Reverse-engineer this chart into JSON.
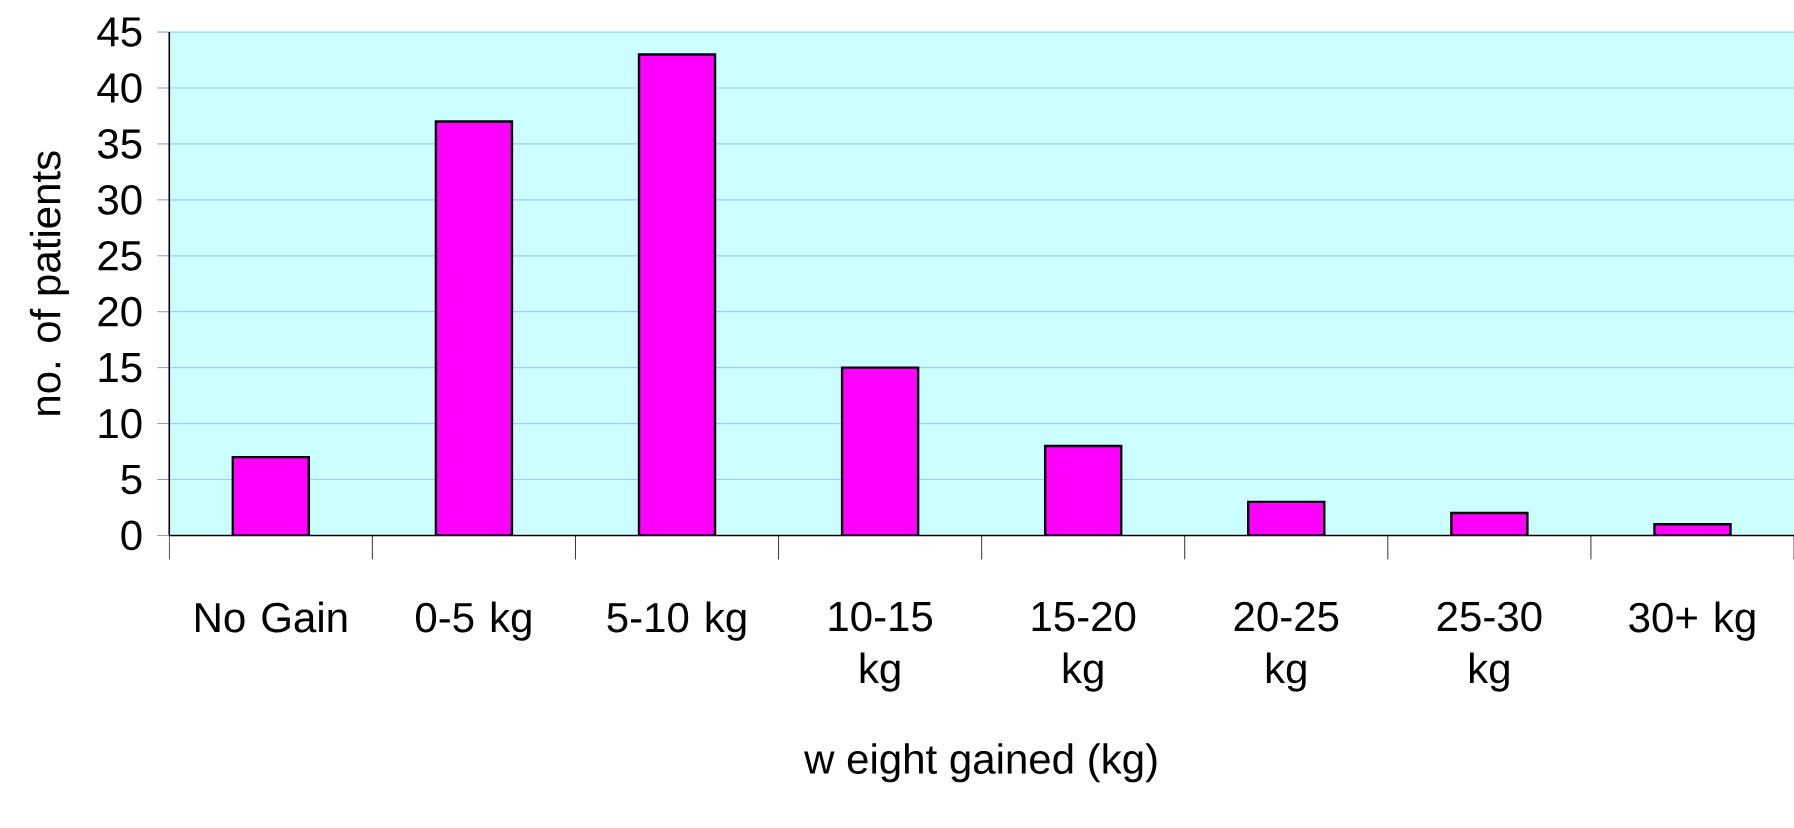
{
  "chart_data": {
    "type": "bar",
    "xlabel": "w eight gained (kg)",
    "ylabel": "no. of patients",
    "categories": [
      "No Gain",
      "0-5 kg",
      "5-10 kg",
      "10-15 kg",
      "15-20 kg",
      "20-25 kg",
      "25-30 kg",
      "30+ kg"
    ],
    "values": [
      7,
      37,
      43,
      15,
      8,
      3,
      2,
      1
    ],
    "color": "#ff00ff",
    "ylim": [
      0,
      45
    ],
    "yticks": [
      0,
      5,
      10,
      15,
      20,
      25,
      30,
      35,
      40,
      45
    ],
    "grid": "y"
  }
}
